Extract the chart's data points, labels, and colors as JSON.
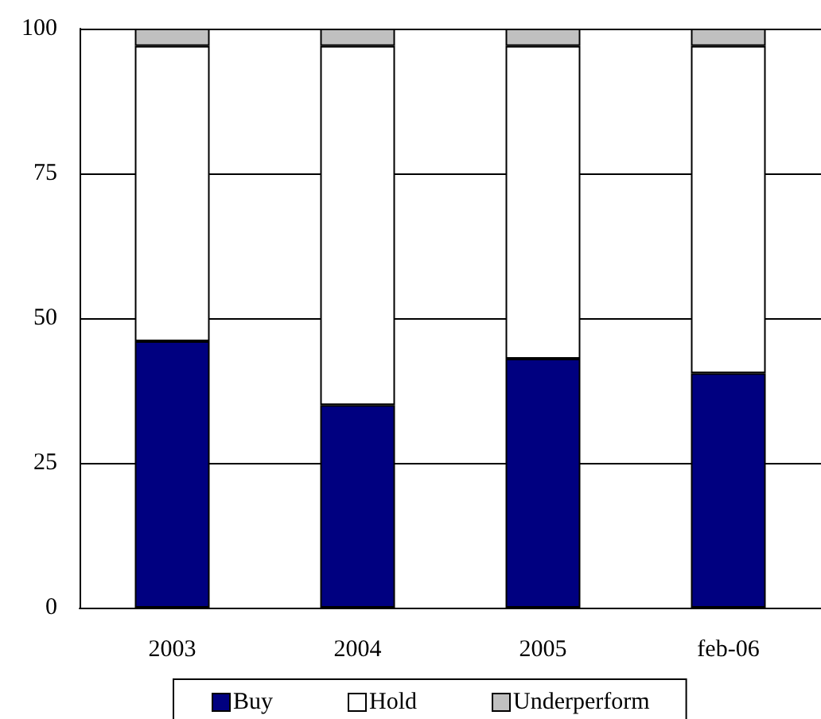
{
  "chart_data": {
    "type": "bar",
    "stacked": true,
    "categories": [
      "2003",
      "2004",
      "2005",
      "feb-06"
    ],
    "series": [
      {
        "name": "Buy",
        "color": "#000080",
        "values": [
          46,
          35,
          43,
          40.5
        ]
      },
      {
        "name": "Hold",
        "color": "#ffffff",
        "values": [
          51,
          62,
          54,
          56.5
        ]
      },
      {
        "name": "Underperform",
        "color": "#c0c0c0",
        "values": [
          3,
          3,
          3,
          3
        ]
      }
    ],
    "ylim": [
      0,
      100
    ],
    "yticks": [
      0,
      25,
      50,
      75,
      100
    ],
    "grid": "y",
    "legend": "bottom"
  }
}
